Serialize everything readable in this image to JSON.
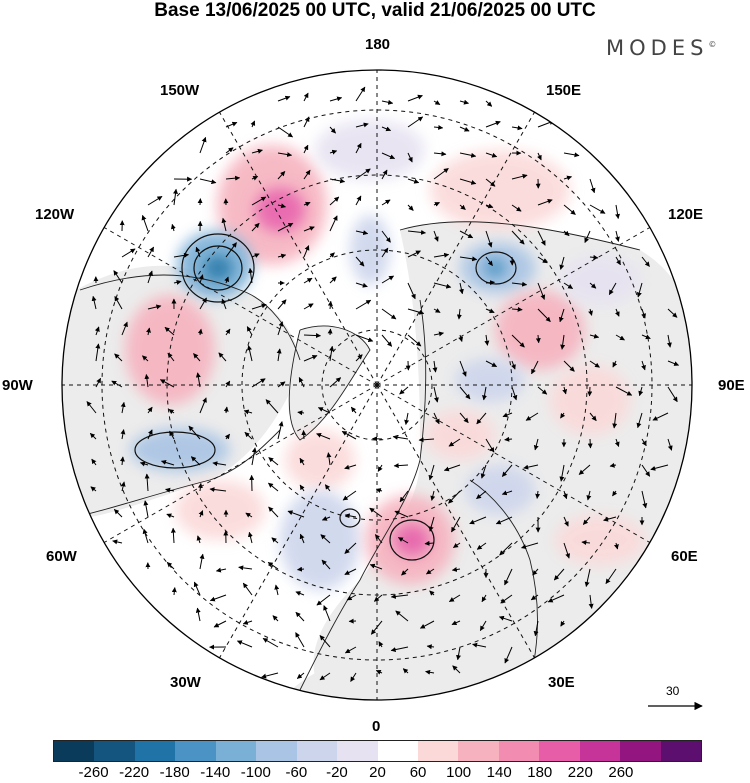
{
  "title": "Base 13/06/2025 00 UTC, valid 21/06/2025 00 UTC",
  "brand": "MODES",
  "brand_mark": "©",
  "longitude_labels": {
    "lon_180": "180",
    "lon_150e": "150E",
    "lon_120e": "120E",
    "lon_90e": "90E",
    "lon_60e": "60E",
    "lon_30e": "30E",
    "lon_0": "0",
    "lon_30w": "30W",
    "lon_60w": "60W",
    "lon_90w": "90W",
    "lon_120w": "120W",
    "lon_150w": "150W"
  },
  "reference_vector": {
    "label": "30"
  },
  "colorbar": {
    "colors": [
      "#0b3b5a",
      "#14557f",
      "#1f73a6",
      "#4a93c4",
      "#7aafd6",
      "#a9c4e4",
      "#cdd5ec",
      "#e6e2f1",
      "#ffffff",
      "#fbd9d9",
      "#f6b3bf",
      "#f28cb0",
      "#e75da8",
      "#c6349a",
      "#93157f",
      "#5c0f6e"
    ],
    "tick_labels": [
      "-260",
      "-220",
      "-180",
      "-140",
      "-100",
      "-60",
      "-20",
      "20",
      "60",
      "100",
      "140",
      "180",
      "220",
      "260"
    ]
  },
  "anomaly_patches": [
    {
      "name": "alaska-low",
      "value": -200
    },
    {
      "name": "east-siberia-low",
      "value": -160
    },
    {
      "name": "pacific-high",
      "value": 180
    },
    {
      "name": "europe-high",
      "value": 160
    },
    {
      "name": "canada-low",
      "value": -120
    },
    {
      "name": "atlantic-low",
      "value": -100
    },
    {
      "name": "siberia-high",
      "value": 80
    }
  ]
}
